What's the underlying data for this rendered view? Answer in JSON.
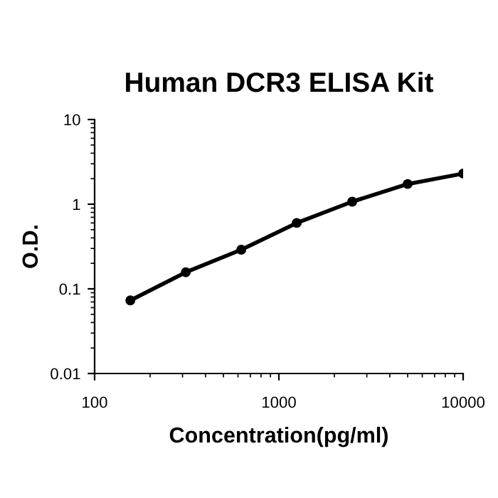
{
  "chart_data": {
    "type": "line",
    "title": "Human DCR3 ELISA Kit",
    "xlabel": "Concentration(pg/ml)",
    "ylabel": "O.D.",
    "x": [
      156.25,
      312.5,
      625,
      1250,
      2500,
      5000,
      10000
    ],
    "series": [
      {
        "color": "#000000",
        "values": [
          0.073,
          0.157,
          0.29,
          0.6,
          1.07,
          1.73,
          2.3
        ]
      }
    ],
    "log": "xy",
    "xlim": [
      100,
      10000
    ],
    "ylim": [
      0.01,
      10
    ],
    "xticks": [
      100,
      1000,
      10000
    ],
    "yticks": [
      0.01,
      0.1,
      1,
      10
    ],
    "marker": "circle",
    "line_style": "solid",
    "grid": false,
    "legend": false
  }
}
